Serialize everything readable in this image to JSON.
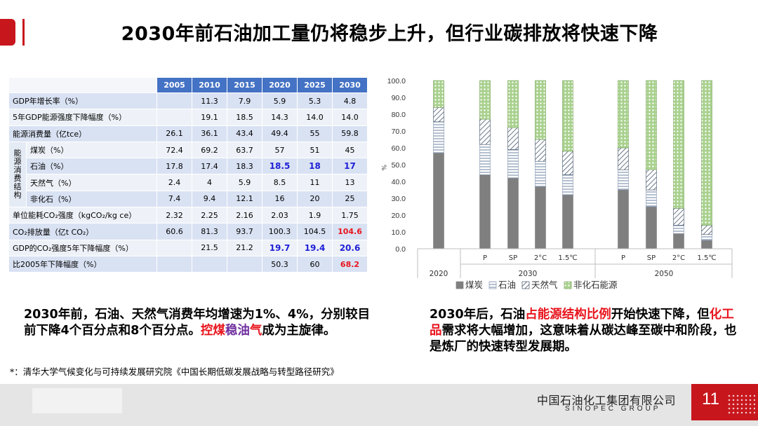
{
  "title": "2030年前石油加工量仍将稳步上升，但行业碳排放将快速下降",
  "table": {
    "years": [
      "2005",
      "2010",
      "2015",
      "2020",
      "2025",
      "2030"
    ],
    "rows": [
      {
        "label": "GDP年增长率（%）",
        "values": [
          "",
          "11.3",
          "7.9",
          "5.9",
          "5.3",
          "4.8"
        ]
      },
      {
        "label": "5年GDP能源强度下降幅度（%）",
        "values": [
          "",
          "19.1",
          "18.5",
          "14.3",
          "14.0",
          "14.0"
        ]
      },
      {
        "label": "能源消费量（亿tce）",
        "values": [
          "26.1",
          "36.1",
          "43.4",
          "49.4",
          "55",
          "59.8"
        ]
      },
      {
        "group": "能源消费结构",
        "label": "煤炭（%）",
        "values": [
          "72.4",
          "69.2",
          "63.7",
          "57",
          "51",
          "45"
        ]
      },
      {
        "label": "石油（%）",
        "values": [
          "17.8",
          "17.4",
          "18.3",
          "18.5",
          "18",
          "17"
        ]
      },
      {
        "label": "天然气（%）",
        "values": [
          "2.4",
          "4",
          "5.9",
          "8.5",
          "11",
          "13"
        ]
      },
      {
        "label": "非化石（%）",
        "values": [
          "7.4",
          "9.4",
          "12.1",
          "16",
          "20",
          "25"
        ]
      },
      {
        "label": "单位能耗CO₂强度（kgCO₂/kg ce）",
        "values": [
          "2.32",
          "2.25",
          "2.16",
          "2.03",
          "1.9",
          "1.75"
        ]
      },
      {
        "label": "CO₂排放量（亿t CO₂）",
        "values": [
          "60.6",
          "81.3",
          "93.7",
          "100.3",
          "104.5",
          "104.6"
        ]
      },
      {
        "label": "GDP的CO₂强度5年下降幅度（%）",
        "values": [
          "",
          "21.5",
          "21.2",
          "19.7",
          "19.4",
          "20.6"
        ]
      },
      {
        "label": "比2005年下降幅度（%）",
        "values": [
          "",
          "",
          "",
          "50.3",
          "60",
          "68.2"
        ]
      }
    ]
  },
  "chart_data": {
    "type": "bar",
    "stacked": true,
    "ylim": [
      0,
      100
    ],
    "yticks": [
      "0.0",
      "10.0",
      "20.0",
      "30.0",
      "40.0",
      "50.0",
      "60.0",
      "70.0",
      "80.0",
      "90.0",
      "100.0"
    ],
    "ylabel": "%",
    "categories": [
      "",
      "P",
      "SP",
      "2°C",
      "1.5℃",
      "P",
      "SP",
      "2°C",
      "1.5℃"
    ],
    "groups": [
      {
        "name": "2020",
        "count": 1
      },
      {
        "name": "2030",
        "count": 4
      },
      {
        "name": "2050",
        "count": 4
      }
    ],
    "series": [
      {
        "name": "煤炭",
        "color": "#7f7f7f",
        "values": [
          57,
          44,
          42,
          37,
          32,
          35,
          25,
          9,
          5
        ]
      },
      {
        "name": "石油",
        "color": "#ffffff",
        "values": [
          18.5,
          18,
          17,
          15,
          12,
          12,
          10,
          5,
          3.5
        ]
      },
      {
        "name": "天然气",
        "color": "#d6dce5",
        "values": [
          8.5,
          15,
          13,
          13,
          14,
          13,
          12,
          10,
          5.5
        ]
      },
      {
        "name": "非化石能源",
        "color": "#b3d9a1",
        "values": [
          16,
          23,
          28,
          35,
          42,
          40,
          53,
          76,
          86
        ]
      }
    ],
    "legend_position": "bottom",
    "grid": false
  },
  "notes": {
    "left": {
      "p1": "2030年前，石油、天然气消费年均增速为1%、4%，分别较目前下降4个百分点和8个百分点。",
      "p2": "控煤",
      "p3": "稳油",
      "p4": "气",
      "p5": "成为主旋律。"
    },
    "right": {
      "p1": "2030年后，石油",
      "p2": "占能源结构比例",
      "p3": "开始快速下降，但",
      "p4": "化工品",
      "p5": "需求将大幅增加，这意味着从碳达峰至碳中和阶段，也是炼厂的快速转型发展期。"
    }
  },
  "source": "*：清华大学气候变化与可持续发展研究院《中国长期低碳发展战略与转型路径研究》",
  "footer": {
    "company": "中国石油化工集团有限公司",
    "company_en": "SINOPEC GROUP",
    "page": "11"
  }
}
